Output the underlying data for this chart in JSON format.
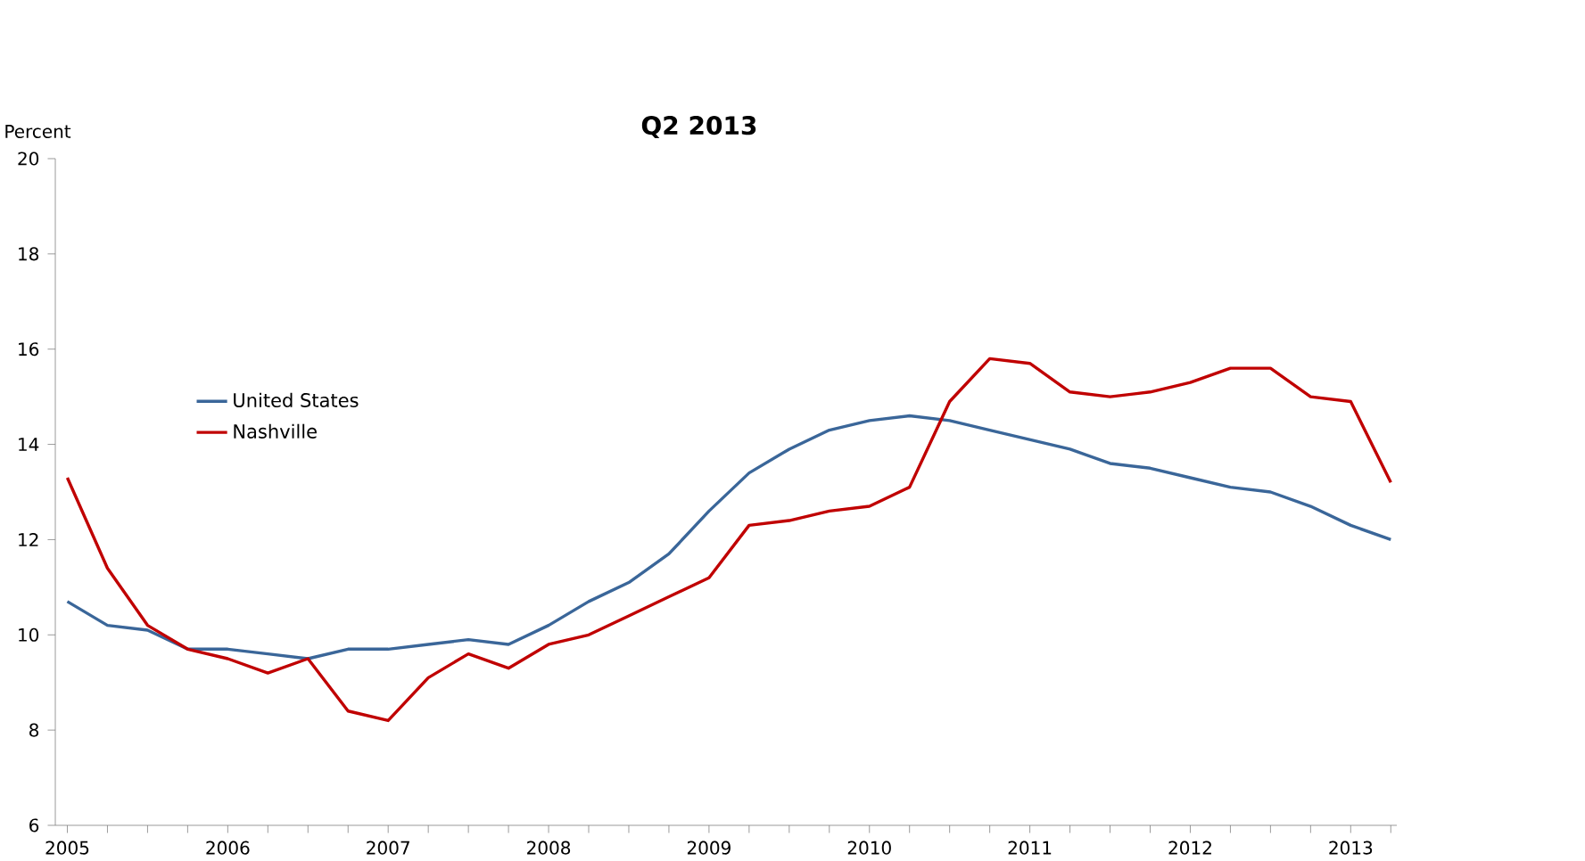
{
  "chart_data": {
    "type": "line",
    "title": "Q2 2013",
    "ylabel": "Percent",
    "categories": [
      "2005",
      null,
      null,
      null,
      "2006",
      null,
      null,
      null,
      "2007",
      null,
      null,
      null,
      "2008",
      null,
      null,
      null,
      "2009",
      null,
      null,
      null,
      "2010",
      null,
      null,
      null,
      "2011",
      null,
      null,
      null,
      "2012",
      null,
      null,
      null,
      "2013",
      null
    ],
    "series": [
      {
        "name": "United States",
        "color": "#3a6699",
        "values": [
          10.7,
          10.2,
          10.1,
          9.7,
          9.7,
          9.6,
          9.5,
          9.7,
          9.7,
          9.8,
          9.9,
          9.8,
          10.2,
          10.7,
          11.1,
          11.7,
          12.6,
          13.4,
          13.9,
          14.3,
          14.5,
          14.6,
          14.5,
          14.3,
          14.1,
          13.9,
          13.6,
          13.5,
          13.3,
          13.1,
          13.0,
          12.7,
          12.3,
          12.0
        ]
      },
      {
        "name": "Nashville",
        "color": "#c00000",
        "values": [
          13.3,
          11.4,
          10.2,
          9.7,
          9.5,
          9.2,
          9.5,
          8.4,
          8.2,
          9.1,
          9.6,
          9.3,
          9.8,
          10.0,
          10.4,
          10.8,
          11.2,
          12.3,
          12.4,
          12.6,
          12.7,
          13.1,
          14.9,
          15.8,
          15.7,
          15.1,
          15.0,
          15.1,
          15.3,
          15.6,
          15.6,
          15.0,
          14.9,
          13.2
        ]
      }
    ],
    "ylim": [
      6,
      20
    ],
    "yticks": [
      6,
      8,
      10,
      12,
      14,
      16,
      18,
      20
    ],
    "grid": false,
    "legend": "left",
    "marker": "none",
    "line_style": "solid"
  }
}
